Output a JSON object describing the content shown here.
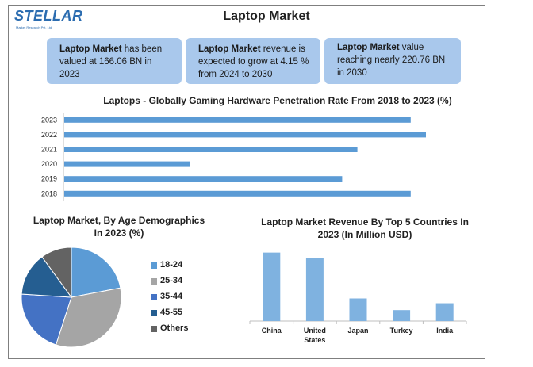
{
  "brand": {
    "name": "STELLAR",
    "tagline": "Market Research Pvt. Ltd."
  },
  "title": "Laptop Market",
  "cards": [
    {
      "bold": "Laptop Market",
      "text": " has been valued at 166.06 BN in 2023"
    },
    {
      "bold": "Laptop Market",
      "text": " revenue is expected to grow at 4.15 % from 2024 to 2030"
    },
    {
      "bold": "Laptop Market",
      "text": " value reaching nearly 220.76 BN in 2030"
    }
  ],
  "colors": {
    "bar": "#5b9bd5",
    "column": "#7fb2e0",
    "card": "#a9c8ec"
  },
  "chart_data": [
    {
      "type": "bar",
      "orientation": "horizontal",
      "title": "Laptops - Globally Gaming Hardware Penetration Rate From 2018 to 2023 (%)",
      "categories": [
        "2023",
        "2022",
        "2021",
        "2020",
        "2019",
        "2018"
      ],
      "values": [
        91,
        95,
        77,
        33,
        73,
        91
      ],
      "xlim": [
        0,
        100
      ],
      "grid": false,
      "legend": "none"
    },
    {
      "type": "pie",
      "title": "Laptop Market, By Age Demographics In 2023 (%)",
      "labels": [
        "18-24",
        "25-34",
        "35-44",
        "45-55",
        "Others"
      ],
      "values": [
        22,
        33,
        21,
        14,
        10
      ],
      "colors": [
        "#5b9bd5",
        "#a5a5a5",
        "#4472c4",
        "#255e91",
        "#636363"
      ],
      "legend": "right"
    },
    {
      "type": "bar",
      "title": "Laptop Market Revenue By Top 5 Countries In 2023 (In Million USD)",
      "categories": [
        "China",
        "United States",
        "Japan",
        "Turkey",
        "India"
      ],
      "values": [
        100,
        92,
        33,
        16,
        26
      ],
      "ylim": [
        0,
        110
      ],
      "grid": false,
      "legend": "none"
    }
  ]
}
